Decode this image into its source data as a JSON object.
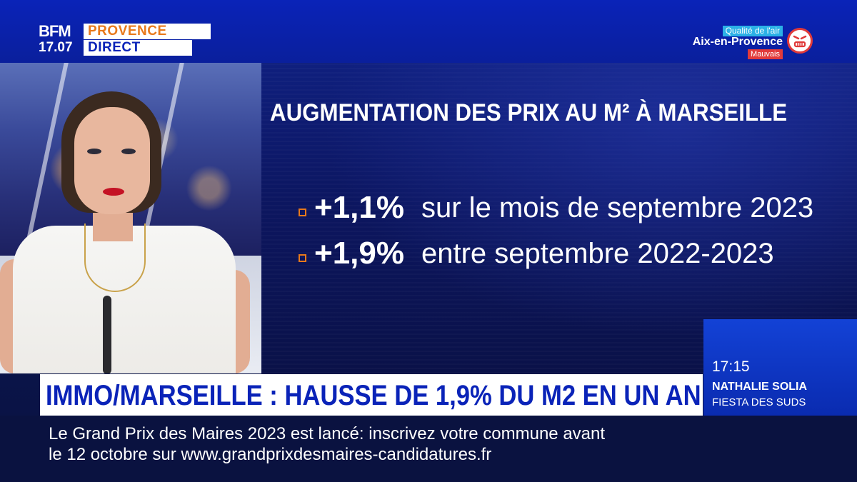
{
  "channel": {
    "brand": "BFM",
    "region": "PROVENCE",
    "live_label": "DIRECT",
    "clock": "17.07"
  },
  "air_quality": {
    "label": "Qualité de l'air",
    "city": "Aix-en-Provence",
    "status": "Mauvais",
    "icon": "angry-face-icon",
    "status_color": "#e23b3b"
  },
  "graphic": {
    "title": "AUGMENTATION DES PRIX AU M² À MARSEILLE",
    "bullets": [
      {
        "value": "+1,1%",
        "text": "sur le mois de septembre 2023"
      },
      {
        "value": "+1,9%",
        "text": "entre septembre 2022-2023"
      }
    ],
    "bullet_color": "#e8791b"
  },
  "lower_third": {
    "headline": "IMMO/MARSEILLE : HAUSSE DE 1,9% DU M2 EN UN AN"
  },
  "next_program": {
    "time": "17:15",
    "presenter": "NATHALIE SOLIA",
    "show": "FIESTA DES SUDS"
  },
  "ticker": {
    "line1": "Le Grand Prix des Maires 2023 est lancé: inscrivez votre commune avant",
    "line2": "le 12 octobre sur www.grandprixdesmaires-candidatures.fr"
  },
  "colors": {
    "brand_blue": "#0a23b8",
    "accent_orange": "#e8791b"
  }
}
